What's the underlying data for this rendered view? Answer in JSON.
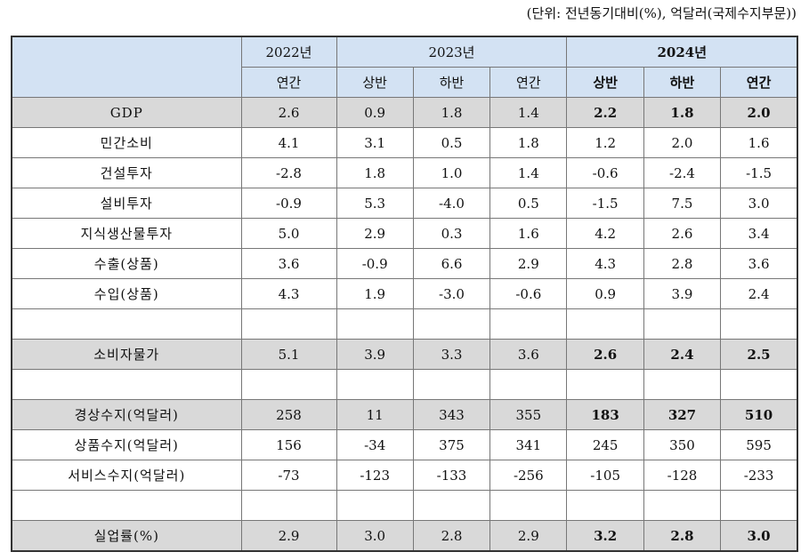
{
  "header": {
    "unit_note": "(단위: 전년동기대비(%), 억달러(국제수지부문))",
    "years": [
      "2022년",
      "2023년",
      "2024년"
    ],
    "periods": [
      "연간",
      "상반",
      "하반",
      "연간",
      "상반",
      "하반",
      "연간"
    ]
  },
  "table": {
    "rows": [
      {
        "label": "GDP",
        "shaded": true,
        "values": [
          "2.6",
          "0.9",
          "1.8",
          "1.4",
          "2.2",
          "1.8",
          "2.0"
        ]
      },
      {
        "label": "민간소비",
        "values": [
          "4.1",
          "3.1",
          "0.5",
          "1.8",
          "1.2",
          "2.0",
          "1.6"
        ]
      },
      {
        "label": "건설투자",
        "values": [
          "-2.8",
          "1.8",
          "1.0",
          "1.4",
          "-0.6",
          "-2.4",
          "-1.5"
        ]
      },
      {
        "label": "설비투자",
        "values": [
          "-0.9",
          "5.3",
          "-4.0",
          "0.5",
          "-1.5",
          "7.5",
          "3.0"
        ]
      },
      {
        "label": "지식생산물투자",
        "values": [
          "5.0",
          "2.9",
          "0.3",
          "1.6",
          "4.2",
          "2.6",
          "3.4"
        ]
      },
      {
        "label": "수출(상품)",
        "values": [
          "3.6",
          "-0.9",
          "6.6",
          "2.9",
          "4.3",
          "2.8",
          "3.6"
        ]
      },
      {
        "label": "수입(상품)",
        "values": [
          "4.3",
          "1.9",
          "-3.0",
          "-0.6",
          "0.9",
          "3.9",
          "2.4"
        ]
      },
      null,
      {
        "label": "소비자물가",
        "shaded": true,
        "values": [
          "5.1",
          "3.9",
          "3.3",
          "3.6",
          "2.6",
          "2.4",
          "2.5"
        ]
      },
      null,
      {
        "label": "경상수지(억달러)",
        "shaded": true,
        "values": [
          "258",
          "11",
          "343",
          "355",
          "183",
          "327",
          "510"
        ]
      },
      {
        "label": "상품수지(억달러)",
        "values": [
          "156",
          "-34",
          "375",
          "341",
          "245",
          "350",
          "595"
        ]
      },
      {
        "label": "서비스수지(억달러)",
        "values": [
          "-73",
          "-123",
          "-133",
          "-256",
          "-105",
          "-128",
          "-233"
        ]
      },
      null,
      {
        "label": "실업률(%)",
        "shaded": true,
        "values": [
          "2.9",
          "3.0",
          "2.8",
          "2.9",
          "3.2",
          "2.8",
          "3.0"
        ]
      }
    ]
  }
}
